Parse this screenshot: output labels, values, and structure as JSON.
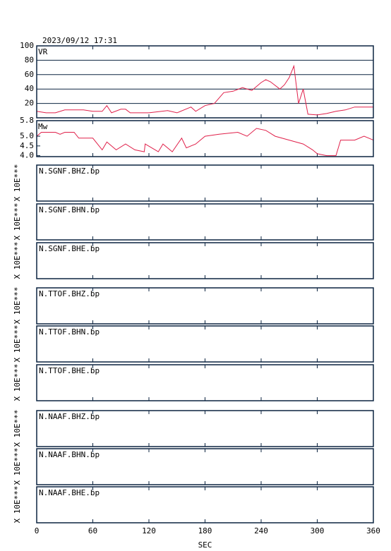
{
  "timestamp": "2023/09/12  17:31",
  "chart_data": [
    {
      "type": "line",
      "title": "VR",
      "color": "#e0204a",
      "grid": true,
      "xlim": [
        0,
        360
      ],
      "xticks": [
        0,
        60,
        120,
        180,
        240,
        300,
        360
      ],
      "ylim": [
        0,
        100
      ],
      "yticks": [
        20,
        40,
        60,
        80,
        100
      ],
      "x": [
        0,
        10,
        20,
        30,
        50,
        60,
        70,
        75,
        80,
        90,
        95,
        100,
        120,
        140,
        150,
        165,
        170,
        180,
        190,
        200,
        210,
        220,
        230,
        240,
        245,
        250,
        260,
        265,
        270,
        275,
        280,
        285,
        290,
        300,
        310,
        320,
        330,
        340,
        360
      ],
      "values": [
        9,
        7,
        7,
        11,
        11,
        9,
        9,
        17,
        7,
        12,
        12,
        7,
        7,
        10,
        7,
        15,
        9,
        17,
        20,
        35,
        37,
        42,
        38,
        49,
        53,
        50,
        40,
        46,
        56,
        72,
        20,
        40,
        5,
        4,
        6,
        9,
        11,
        15,
        15
      ]
    },
    {
      "type": "line",
      "title": "Mw",
      "color": "#e0204a",
      "xlim": [
        0,
        360
      ],
      "xticks": [
        0,
        60,
        120,
        180,
        240,
        300,
        360
      ],
      "ylim": [
        3.95,
        5.8
      ],
      "yticks": [
        {
          "value": 4.0,
          "label": "4.0"
        },
        4.5,
        {
          "value": 5.0,
          "label": "5.0"
        },
        5.8
      ],
      "x": [
        0,
        5,
        20,
        25,
        30,
        40,
        45,
        60,
        70,
        75,
        85,
        95,
        105,
        115,
        116,
        130,
        135,
        145,
        155,
        160,
        170,
        180,
        195,
        215,
        225,
        235,
        245,
        255,
        270,
        285,
        295,
        300,
        310,
        320,
        325,
        340,
        350,
        360
      ],
      "values": [
        5.0,
        5.2,
        5.2,
        5.1,
        5.2,
        5.2,
        4.9,
        4.9,
        4.3,
        4.7,
        4.3,
        4.6,
        4.3,
        4.2,
        4.6,
        4.2,
        4.6,
        4.2,
        4.9,
        4.4,
        4.6,
        5.0,
        5.1,
        5.2,
        5.0,
        5.4,
        5.3,
        5.0,
        4.8,
        4.6,
        4.3,
        4.1,
        4.0,
        4.0,
        4.8,
        4.8,
        5.0,
        4.8
      ]
    },
    {
      "type": "waveform",
      "y_label": "X 10E***",
      "xlabel": "SEC",
      "xlim": [
        0,
        360
      ],
      "xticks": [
        0,
        60,
        120,
        180,
        240,
        300,
        360
      ],
      "panels": [
        "N.SGNF.BHZ.bp",
        "N.SGNF.BHN.bp",
        "N.SGNF.BHE.bp",
        "N.TTOF.BHZ.bp",
        "N.TTOF.BHN.bp",
        "N.TTOF.BHE.bp",
        "N.NAAF.BHZ.bp",
        "N.NAAF.BHN.bp",
        "N.NAAF.BHE.bp"
      ]
    }
  ]
}
